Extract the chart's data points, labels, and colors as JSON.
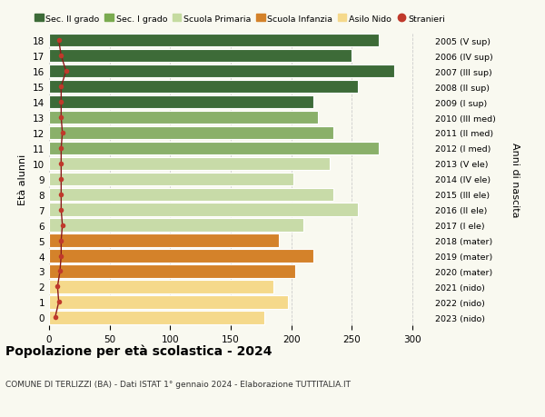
{
  "ages": [
    0,
    1,
    2,
    3,
    4,
    5,
    6,
    7,
    8,
    9,
    10,
    11,
    12,
    13,
    14,
    15,
    16,
    17,
    18
  ],
  "values": [
    178,
    197,
    185,
    203,
    218,
    190,
    210,
    255,
    235,
    202,
    232,
    272,
    235,
    222,
    218,
    255,
    285,
    250,
    272
  ],
  "right_labels": [
    "2023 (nido)",
    "2022 (nido)",
    "2021 (nido)",
    "2020 (mater)",
    "2019 (mater)",
    "2018 (mater)",
    "2017 (I ele)",
    "2016 (II ele)",
    "2015 (III ele)",
    "2014 (IV ele)",
    "2013 (V ele)",
    "2012 (I med)",
    "2011 (II med)",
    "2010 (III med)",
    "2009 (I sup)",
    "2008 (II sup)",
    "2007 (III sup)",
    "2006 (IV sup)",
    "2005 (V sup)"
  ],
  "stranieri": [
    5,
    8,
    7,
    9,
    10,
    10,
    11,
    10,
    10,
    10,
    10,
    10,
    11,
    10,
    10,
    10,
    14,
    10,
    8
  ],
  "bar_colors": [
    "#f5d98b",
    "#f5d98b",
    "#f5d98b",
    "#d4822a",
    "#d4822a",
    "#d4822a",
    "#c8dba8",
    "#c8dba8",
    "#c8dba8",
    "#c8dba8",
    "#c8dba8",
    "#8ab06a",
    "#8ab06a",
    "#8ab06a",
    "#3d6b38",
    "#3d6b38",
    "#3d6b38",
    "#3d6b38",
    "#3d6b38"
  ],
  "legend_colors": [
    "#3d6b38",
    "#7aab50",
    "#c5dba0",
    "#d4822a",
    "#f5d98b",
    "#c0392b"
  ],
  "legend_labels": [
    "Sec. II grado",
    "Sec. I grado",
    "Scuola Primaria",
    "Scuola Infanzia",
    "Asilo Nido",
    "Stranieri"
  ],
  "ylabel": "Età alunni",
  "right_ylabel": "Anni di nascita",
  "title": "Popolazione per età scolastica - 2024",
  "subtitle": "COMUNE DI TERLIZZI (BA) - Dati ISTAT 1° gennaio 2024 - Elaborazione TUTTITALIA.IT",
  "xlim": [
    0,
    315
  ],
  "xticks": [
    0,
    50,
    100,
    150,
    200,
    250,
    300
  ],
  "background_color": "#f9f9f0",
  "grid_color": "#cccccc"
}
